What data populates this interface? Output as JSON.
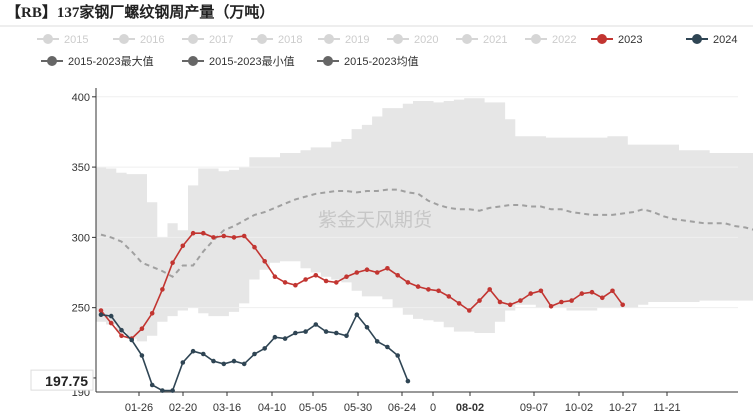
{
  "chart_data": {
    "type": "line",
    "title": "【RB】137家钢厂螺纹钢周产量（万吨）",
    "watermark": "紫金天风期货",
    "xlabel": "",
    "ylabel": "",
    "ylim": [
      190,
      402
    ],
    "yticks": [
      200,
      250,
      300,
      350,
      400
    ],
    "y_ticklabels": [
      "",
      "250",
      "300",
      "350",
      "400"
    ],
    "y_bottom_label": "190",
    "x_ticklabels": [
      "01-26",
      "02-20",
      "03-16",
      "04-10",
      "05-05",
      "05-30",
      "06-24",
      "0",
      "08-02",
      "09-07",
      "10-02",
      "10-27",
      "11-21"
    ],
    "x_highlight_label": "08-02",
    "crosshair_value_label": "197.75",
    "crosshair_y": 197.75,
    "legend": {
      "position": "top",
      "items": [
        {
          "name": "2015",
          "color": "#cccccc",
          "active": false
        },
        {
          "name": "2016",
          "color": "#cccccc",
          "active": false
        },
        {
          "name": "2017",
          "color": "#cccccc",
          "active": false
        },
        {
          "name": "2018",
          "color": "#cccccc",
          "active": false
        },
        {
          "name": "2019",
          "color": "#cccccc",
          "active": false
        },
        {
          "name": "2020",
          "color": "#cccccc",
          "active": false
        },
        {
          "name": "2021",
          "color": "#cccccc",
          "active": false
        },
        {
          "name": "2022",
          "color": "#cccccc",
          "active": false
        },
        {
          "name": "2023",
          "color": "#c23531",
          "active": true
        },
        {
          "name": "2024",
          "color": "#2f4554",
          "active": true
        },
        {
          "name": "2015-2023最大值",
          "color": "#666666",
          "active": true
        },
        {
          "name": "2015-2023最小值",
          "color": "#666666",
          "active": true
        },
        {
          "name": "2015-2023均值",
          "color": "#666666",
          "active": true
        }
      ]
    },
    "range_max": [
      350,
      349,
      346,
      345,
      345,
      325,
      300,
      310,
      305,
      337,
      349,
      349,
      347,
      348,
      350,
      357,
      357,
      357,
      360,
      360,
      362,
      364,
      364,
      368,
      370,
      377,
      380,
      386,
      392,
      392,
      395,
      397,
      397,
      396,
      397,
      398,
      399,
      399,
      396,
      396,
      384,
      372,
      372,
      372,
      371,
      371,
      371,
      371,
      371,
      371,
      372,
      372,
      366,
      366,
      366,
      366,
      366,
      362,
      362,
      362,
      360,
      360,
      360,
      360,
      360,
      362,
      366,
      362,
      346
    ],
    "range_min": [
      240,
      238,
      233,
      228,
      226,
      230,
      240,
      244,
      248,
      250,
      246,
      244,
      244,
      247,
      253,
      270,
      277,
      282,
      283,
      283,
      278,
      275,
      272,
      270,
      268,
      262,
      258,
      258,
      256,
      250,
      245,
      242,
      241,
      240,
      236,
      233,
      233,
      232,
      232,
      240,
      248,
      252,
      252,
      250,
      250,
      250,
      248,
      248,
      248,
      250,
      250,
      250,
      250,
      252,
      254,
      254,
      254,
      254,
      254,
      255,
      255,
      255,
      255,
      255,
      255,
      255,
      255,
      253,
      250
    ],
    "range_min_legacy_note": "",
    "series": [
      {
        "name": "2015-2023均值",
        "style": "dashed",
        "color": "#a0a0a0",
        "values": [
          302,
          300,
          297,
          290,
          282,
          279,
          276,
          272,
          280,
          280,
          290,
          298,
          305,
          308,
          312,
          316,
          318,
          321,
          324,
          327,
          329,
          331,
          332,
          333,
          333,
          332,
          333,
          333,
          334,
          334,
          332,
          331,
          326,
          323,
          321,
          320,
          320,
          319,
          321,
          322,
          323,
          323,
          322,
          322,
          320,
          320,
          318,
          317,
          316,
          316,
          316,
          317,
          318,
          320,
          318,
          315,
          313,
          312,
          311,
          310,
          310,
          310,
          308,
          307,
          305,
          304,
          303,
          301,
          300
        ]
      },
      {
        "name": "2023",
        "color": "#c23531",
        "values": [
          248,
          239,
          230,
          228,
          235,
          246,
          263,
          282,
          294,
          303,
          303,
          300,
          301,
          300,
          301,
          293,
          283,
          272,
          268,
          266,
          270,
          273,
          269,
          268,
          272,
          275,
          277,
          275,
          278,
          273,
          268,
          265,
          263,
          262,
          258,
          253,
          248,
          255,
          263,
          254,
          252,
          255,
          260,
          262,
          251,
          254,
          255,
          260,
          261,
          257,
          262,
          252
        ]
      },
      {
        "name": "2024",
        "color": "#2f4554",
        "values": [
          245,
          244,
          234,
          227,
          216,
          195,
          191,
          191,
          211,
          219,
          217,
          212,
          210,
          212,
          210,
          217,
          221,
          229,
          228,
          232,
          233,
          238,
          233,
          232,
          230,
          245,
          236,
          226,
          222,
          216,
          197.75
        ]
      }
    ]
  }
}
